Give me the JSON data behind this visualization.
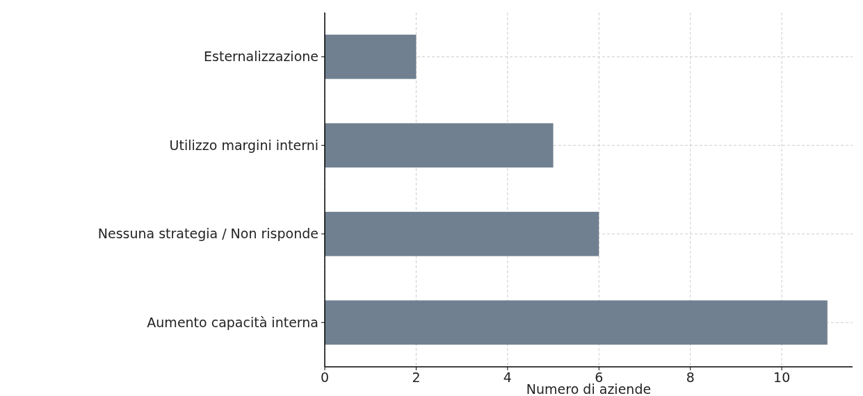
{
  "chart_data": {
    "type": "bar",
    "orientation": "horizontal",
    "xlabel": "Numero di aziende",
    "categories": [
      "Esternalizzazione",
      "Utilizzo margini interni",
      "Nessuna strategia / Non risponde",
      "Aumento capacità interna"
    ],
    "values": [
      2,
      5,
      6,
      11
    ],
    "color": "#708090",
    "xlim": [
      0,
      11.55
    ],
    "xticks": [
      0,
      2,
      4,
      6,
      8,
      10
    ],
    "grid": true
  }
}
